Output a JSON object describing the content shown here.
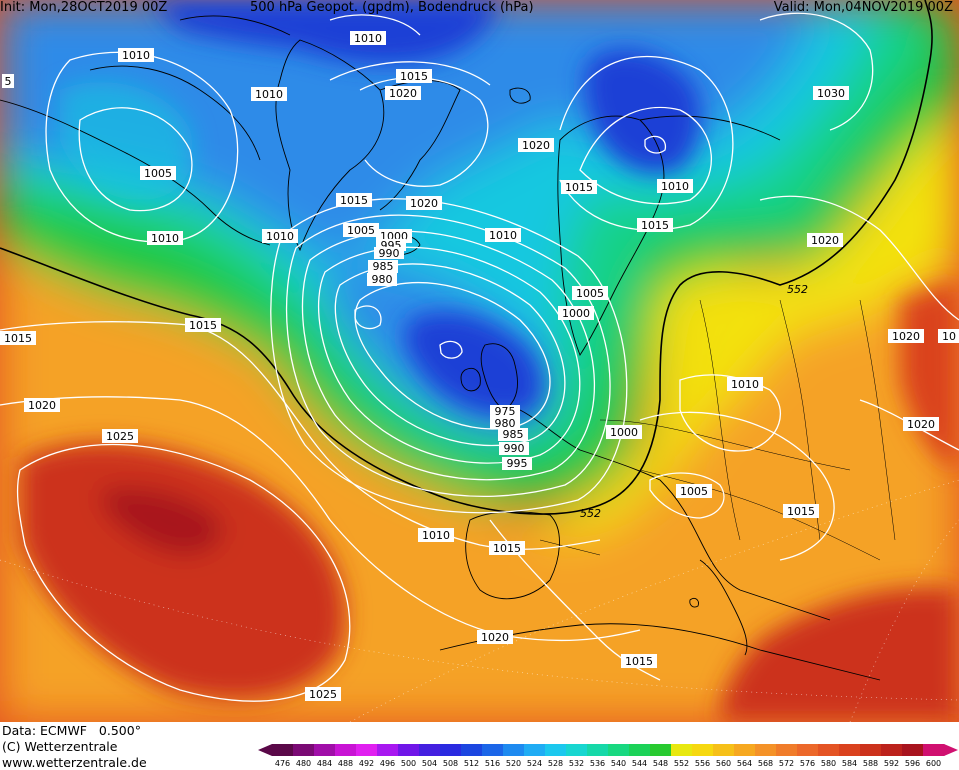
{
  "header": {
    "init": "Init: Mon,28OCT2019 00Z",
    "title": "500 hPa Geopot. (gpdm), Bodendruck (hPa)",
    "valid": "Valid: Mon,04NOV2019 00Z"
  },
  "footer": {
    "data_source": "Data: ECMWF   0.500°",
    "copyright": "(C) Wetterzentrale",
    "url": "www.wetterzentrale.de"
  },
  "colors": {
    "deep_blue": "#1b3fd6",
    "blue": "#2d8be8",
    "cyan": "#18c8e0",
    "teal_green": "#14d28c",
    "green": "#22c83c",
    "yellow": "#f2e610",
    "orange": "#f5a228",
    "red_orange": "#e4531e",
    "dark_red": "#b0101e",
    "isobar": "#ffffff",
    "geo_contour": "#000000"
  },
  "scale": {
    "values": [
      "476",
      "480",
      "484",
      "488",
      "492",
      "496",
      "500",
      "504",
      "508",
      "512",
      "516",
      "520",
      "524",
      "528",
      "532",
      "536",
      "540",
      "544",
      "548",
      "552",
      "556",
      "560",
      "564",
      "568",
      "572",
      "576",
      "580",
      "584",
      "588",
      "592",
      "596",
      "600"
    ],
    "colors": [
      "#5a0848",
      "#7a0a74",
      "#a00ea8",
      "#c814d4",
      "#e020f0",
      "#a818f0",
      "#7016e8",
      "#4420e0",
      "#2a2ae0",
      "#1c46e0",
      "#1c66e8",
      "#1e8af0",
      "#20acf4",
      "#1cc8ee",
      "#18d6d0",
      "#16d8a8",
      "#18d880",
      "#1cd258",
      "#28ca30",
      "#e8e810",
      "#f6d810",
      "#f6c018",
      "#f6a820",
      "#f49228",
      "#f07c2a",
      "#ec682a",
      "#e45424",
      "#da421e",
      "#cc321c",
      "#bc221c",
      "#a8141e",
      "#d01070"
    ]
  },
  "isobar_labels": [
    "1010",
    "1010",
    "1015",
    "1020",
    "1030",
    "1010",
    "1005",
    "1020",
    "1015",
    "1010",
    "1015",
    "1010",
    "1010",
    "1005",
    "1000",
    "995",
    "990",
    "985",
    "980",
    "1010",
    "1020",
    "1015",
    "1005",
    "1000",
    "552",
    "1015",
    "1020",
    "1015",
    "1020",
    "1010",
    "1025",
    "1020",
    "975",
    "980",
    "985",
    "990",
    "995",
    "1000",
    "1005",
    "1015",
    "1010",
    "1015",
    "552",
    "1020",
    "1015",
    "1025",
    "1020",
    "1010",
    "5",
    "10"
  ]
}
